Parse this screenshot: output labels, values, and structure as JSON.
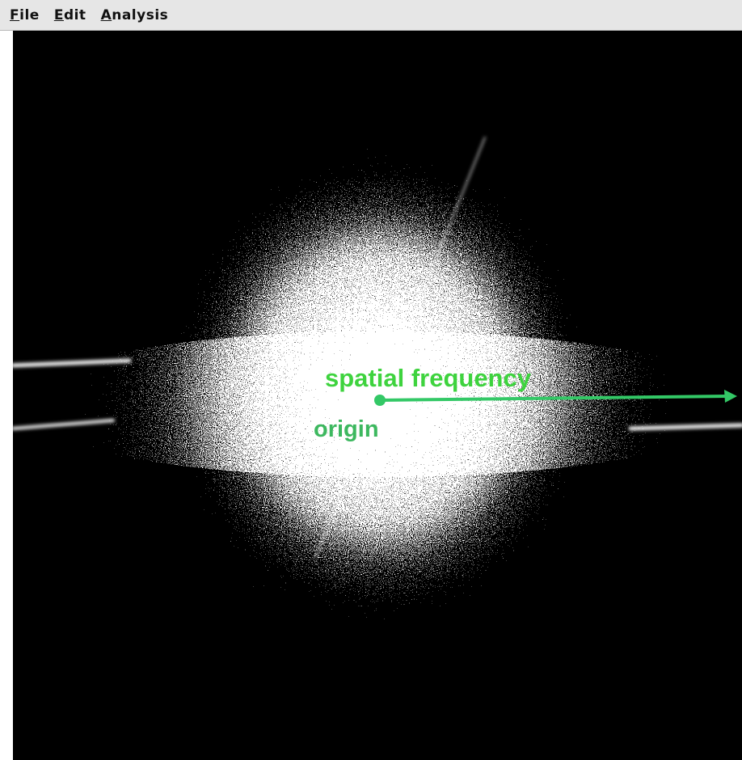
{
  "menu": {
    "items": [
      "File",
      "Edit",
      "Analysis"
    ]
  },
  "annotations": {
    "arrow_label": "spatial frequency",
    "origin_label": "origin"
  }
}
